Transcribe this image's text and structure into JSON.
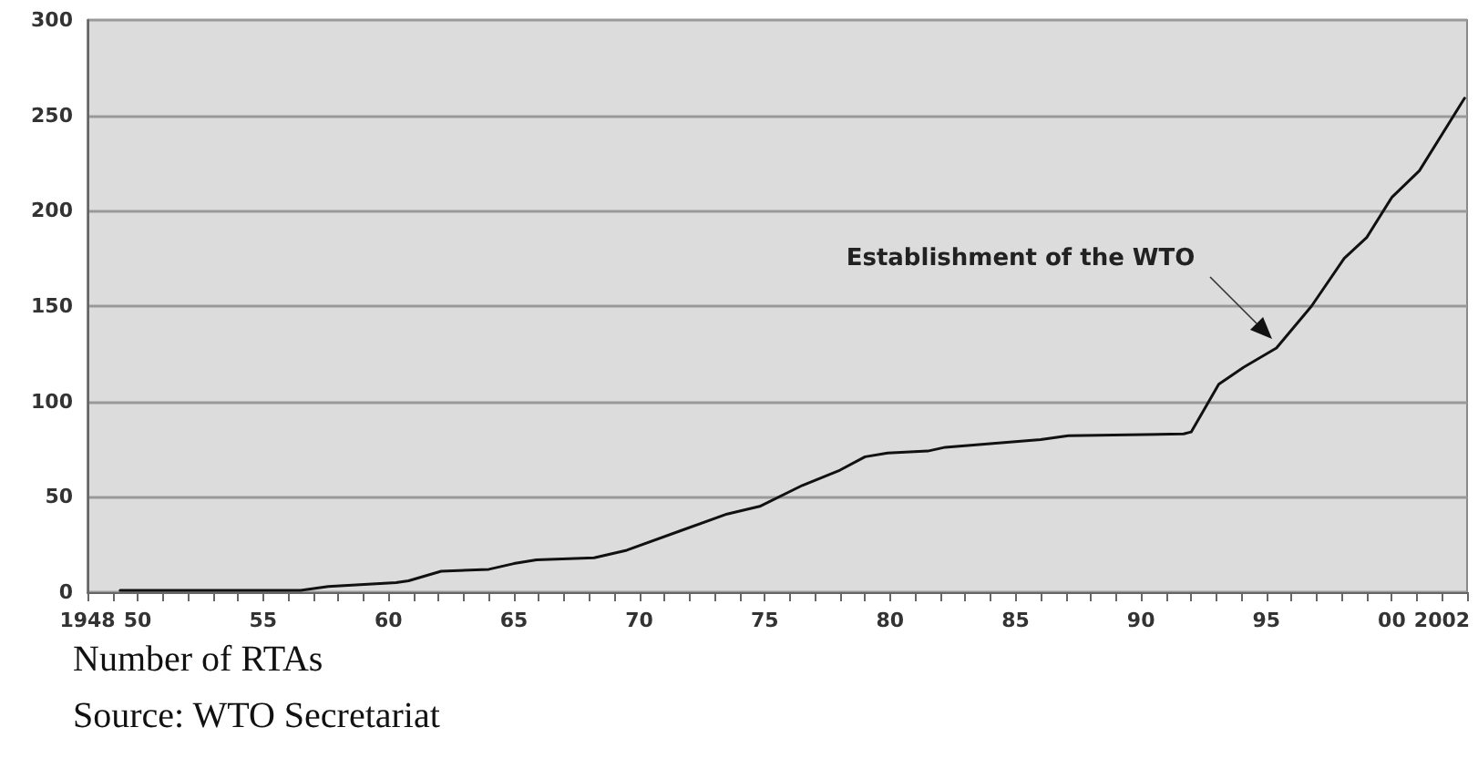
{
  "chart_data": {
    "type": "line",
    "x": [
      1949.3,
      1956.5,
      1957.6,
      1960.3,
      1960.8,
      1962.1,
      1964,
      1965,
      1965.9,
      1968.2,
      1969.5,
      1971.6,
      1973.5,
      1974.8,
      1976.5,
      1978,
      1979,
      1979.9,
      1981.5,
      1982.2,
      1984.1,
      1986,
      1987.1,
      1991.7,
      1992,
      1993.1,
      1994.1,
      1995.4,
      1996.8,
      1998.1,
      1999,
      2000,
      2001.1,
      2002.9
    ],
    "series": [
      {
        "color": "#111111",
        "values": [
          1,
          1,
          3,
          5,
          6,
          11,
          12,
          15,
          17,
          18,
          22,
          32,
          41,
          45,
          56,
          64,
          71,
          73,
          74,
          76,
          78,
          80,
          82,
          83,
          84,
          109,
          118,
          128,
          150,
          175,
          186,
          207,
          221,
          259
        ]
      }
    ],
    "xlim": [
      1948,
      2003
    ],
    "xticks": [
      {
        "value": 1948,
        "label": "1948"
      },
      {
        "value": 1949,
        "label": null
      },
      {
        "value": 1950,
        "label": "50"
      },
      {
        "value": 1951,
        "label": null
      },
      {
        "value": 1952,
        "label": null
      },
      {
        "value": 1953,
        "label": null
      },
      {
        "value": 1954,
        "label": null
      },
      {
        "value": 1955,
        "label": "55"
      },
      {
        "value": 1956,
        "label": null
      },
      {
        "value": 1957,
        "label": null
      },
      {
        "value": 1958,
        "label": null
      },
      {
        "value": 1959,
        "label": null
      },
      {
        "value": 1960,
        "label": "60"
      },
      {
        "value": 1961,
        "label": null
      },
      {
        "value": 1962,
        "label": null
      },
      {
        "value": 1963,
        "label": null
      },
      {
        "value": 1964,
        "label": null
      },
      {
        "value": 1965,
        "label": "65"
      },
      {
        "value": 1966,
        "label": null
      },
      {
        "value": 1967,
        "label": null
      },
      {
        "value": 1968,
        "label": null
      },
      {
        "value": 1969,
        "label": null
      },
      {
        "value": 1970,
        "label": "70"
      },
      {
        "value": 1971,
        "label": null
      },
      {
        "value": 1972,
        "label": null
      },
      {
        "value": 1973,
        "label": null
      },
      {
        "value": 1974,
        "label": null
      },
      {
        "value": 1975,
        "label": "75"
      },
      {
        "value": 1976,
        "label": null
      },
      {
        "value": 1977,
        "label": null
      },
      {
        "value": 1978,
        "label": null
      },
      {
        "value": 1979,
        "label": null
      },
      {
        "value": 1980,
        "label": "80"
      },
      {
        "value": 1981,
        "label": null
      },
      {
        "value": 1982,
        "label": null
      },
      {
        "value": 1983,
        "label": null
      },
      {
        "value": 1984,
        "label": null
      },
      {
        "value": 1985,
        "label": "85"
      },
      {
        "value": 1986,
        "label": null
      },
      {
        "value": 1987,
        "label": null
      },
      {
        "value": 1988,
        "label": null
      },
      {
        "value": 1989,
        "label": null
      },
      {
        "value": 1990,
        "label": "90"
      },
      {
        "value": 1991,
        "label": null
      },
      {
        "value": 1992,
        "label": null
      },
      {
        "value": 1993,
        "label": null
      },
      {
        "value": 1994,
        "label": null
      },
      {
        "value": 1995,
        "label": "95"
      },
      {
        "value": 1996,
        "label": null
      },
      {
        "value": 1997,
        "label": null
      },
      {
        "value": 1998,
        "label": null
      },
      {
        "value": 1999,
        "label": null
      },
      {
        "value": 2000,
        "label": "00"
      },
      {
        "value": 2001,
        "label": null
      },
      {
        "value": 2002,
        "label": "2002"
      },
      {
        "value": 2003,
        "label": null
      }
    ],
    "ylim": [
      0,
      300
    ],
    "yticks": [
      0,
      50,
      100,
      150,
      200,
      250,
      300
    ],
    "grid": "y",
    "marker": "none",
    "line_style": "solid",
    "annotations": [
      "Establishment of the WTO",
      "Number of RTAs",
      "Source: WTO Secretariat"
    ]
  }
}
